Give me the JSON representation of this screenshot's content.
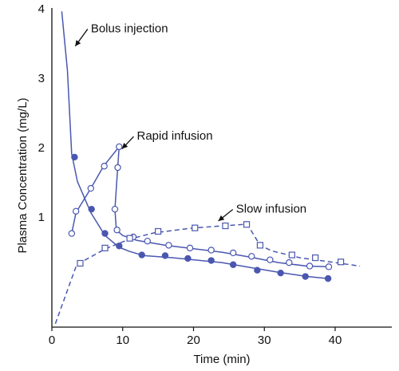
{
  "chart_data": {
    "type": "line",
    "xlabel": "Time (min)",
    "ylabel": "Plasma Concentration (mg/L)",
    "xlim": [
      0,
      48
    ],
    "ylim": [
      -0.6,
      4
    ],
    "x_ticks": [
      0,
      10,
      20,
      30,
      40
    ],
    "y_ticks": [
      1,
      2,
      3,
      4
    ],
    "grid": false,
    "line_color": "#4a57b0",
    "series": [
      {
        "line_style": "solid",
        "marker": "filled-circle",
        "curve": [
          [
            1.4,
            3.95
          ],
          [
            2.2,
            3.1
          ],
          [
            2.8,
            1.9
          ],
          [
            3.6,
            1.5
          ],
          [
            5.5,
            1.05
          ],
          [
            7.5,
            0.72
          ],
          [
            9.5,
            0.55
          ],
          [
            11,
            0.49
          ],
          [
            13,
            0.43
          ],
          [
            17,
            0.4
          ],
          [
            21,
            0.36
          ],
          [
            24,
            0.33
          ],
          [
            28,
            0.26
          ],
          [
            32,
            0.19
          ],
          [
            36,
            0.13
          ],
          [
            39,
            0.1
          ]
        ],
        "marked": [
          [
            3.2,
            1.85
          ],
          [
            5.6,
            1.1
          ],
          [
            7.5,
            0.75
          ],
          [
            9.5,
            0.57
          ],
          [
            12.7,
            0.44
          ],
          [
            16,
            0.43
          ],
          [
            19.2,
            0.39
          ],
          [
            22.5,
            0.36
          ],
          [
            25.6,
            0.3
          ],
          [
            29,
            0.22
          ],
          [
            32.3,
            0.18
          ],
          [
            35.8,
            0.13
          ],
          [
            39,
            0.1
          ]
        ]
      },
      {
        "line_style": "solid",
        "marker": "open-circle",
        "curve": [
          [
            2.8,
            0.75
          ],
          [
            3.4,
            1.05
          ],
          [
            5.5,
            1.4
          ],
          [
            7.3,
            1.72
          ],
          [
            9.5,
            2.0
          ],
          [
            9.3,
            1.7
          ],
          [
            8.9,
            1.1
          ],
          [
            9.1,
            0.8
          ],
          [
            10,
            0.72
          ],
          [
            12,
            0.65
          ],
          [
            16,
            0.58
          ],
          [
            20,
            0.53
          ],
          [
            24,
            0.48
          ],
          [
            28,
            0.41
          ],
          [
            32,
            0.33
          ],
          [
            36,
            0.28
          ],
          [
            39,
            0.27
          ]
        ],
        "marked": [
          [
            2.8,
            0.75
          ],
          [
            3.4,
            1.07
          ],
          [
            5.5,
            1.4
          ],
          [
            7.4,
            1.72
          ],
          [
            9.5,
            2.0
          ],
          [
            9.3,
            1.7
          ],
          [
            8.9,
            1.1
          ],
          [
            9.2,
            0.8
          ],
          [
            11.5,
            0.7
          ],
          [
            13.5,
            0.64
          ],
          [
            16.5,
            0.58
          ],
          [
            19.5,
            0.54
          ],
          [
            22.5,
            0.51
          ],
          [
            25.6,
            0.47
          ],
          [
            28.2,
            0.42
          ],
          [
            30.8,
            0.37
          ],
          [
            33.5,
            0.33
          ],
          [
            36.4,
            0.28
          ],
          [
            39.1,
            0.27
          ]
        ]
      },
      {
        "line_style": "dashed",
        "marker": "open-square",
        "curve": [
          [
            0.5,
            -0.55
          ],
          [
            3.5,
            0.3
          ],
          [
            7.6,
            0.53
          ],
          [
            11,
            0.67
          ],
          [
            14.5,
            0.76
          ],
          [
            20,
            0.83
          ],
          [
            27,
            0.88
          ],
          [
            27.6,
            0.88
          ],
          [
            29.4,
            0.58
          ],
          [
            31,
            0.5
          ],
          [
            35,
            0.4
          ],
          [
            40,
            0.33
          ],
          [
            43.5,
            0.28
          ]
        ],
        "marked": [
          [
            4,
            0.32
          ],
          [
            7.5,
            0.54
          ],
          [
            11,
            0.68
          ],
          [
            15,
            0.78
          ],
          [
            20.2,
            0.83
          ],
          [
            24.5,
            0.86
          ],
          [
            27.5,
            0.88
          ],
          [
            29.4,
            0.58
          ],
          [
            33.9,
            0.44
          ],
          [
            37.2,
            0.4
          ],
          [
            40.8,
            0.34
          ]
        ]
      }
    ],
    "annotations": [
      {
        "text": "Bolus injection",
        "point_at": [
          3.3,
          3.45
        ],
        "label_at": [
          5.5,
          3.65
        ]
      },
      {
        "text": "Rapid infusion",
        "point_at": [
          9.9,
          1.97
        ],
        "label_at": [
          12,
          2.1
        ]
      },
      {
        "text": "Slow infusion",
        "point_at": [
          23.5,
          0.93
        ],
        "label_at": [
          26,
          1.05
        ]
      }
    ]
  }
}
